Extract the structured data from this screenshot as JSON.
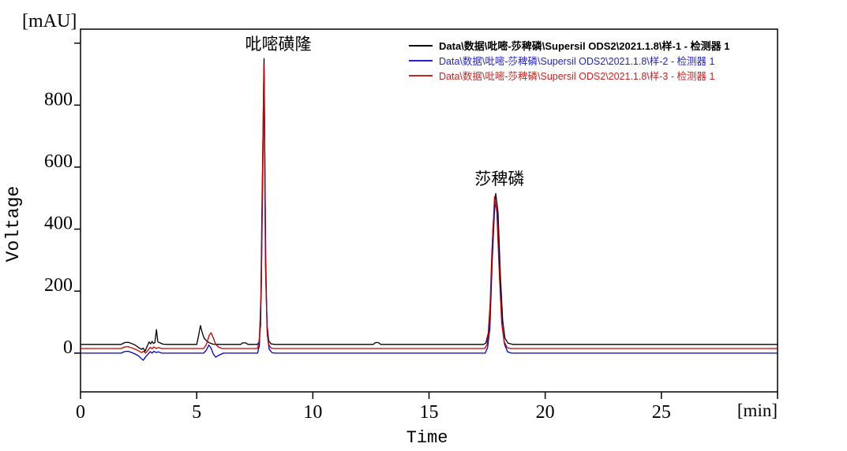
{
  "chart_data": {
    "type": "line",
    "title": "",
    "xlabel": "Time",
    "x_unit": "[min]",
    "ylabel": "Voltage",
    "y_unit": "[mAU]",
    "x_range": [
      0,
      30
    ],
    "y_range": [
      -125,
      1045
    ],
    "grid": "off",
    "legend_position": "top-right-inside",
    "axis_color": "#000000",
    "x_ticks": [
      {
        "t": 0,
        "label": "0"
      },
      {
        "t": 5,
        "label": "5"
      },
      {
        "t": 10,
        "label": "10"
      },
      {
        "t": 15,
        "label": "15"
      },
      {
        "t": 20,
        "label": "20"
      },
      {
        "t": 25,
        "label": "25"
      },
      {
        "t": 30,
        "label": ""
      }
    ],
    "y_ticks": [
      {
        "v": 0,
        "label": "0"
      },
      {
        "v": 200,
        "label": "200"
      },
      {
        "v": 400,
        "label": "400"
      },
      {
        "v": 600,
        "label": "600"
      },
      {
        "v": 800,
        "label": "800"
      },
      {
        "v": 1000,
        "label": ""
      }
    ],
    "peak_annotations": [
      {
        "label": "吡嘧磺隆",
        "t": 7.9,
        "value": 950,
        "dx": 18
      },
      {
        "label": "莎稗磷",
        "t": 17.9,
        "value": 515,
        "dx": 4
      }
    ],
    "series": [
      {
        "name": "样-1",
        "color": "#000000",
        "points": [
          [
            0,
            28
          ],
          [
            1.75,
            28
          ],
          [
            1.9,
            34
          ],
          [
            2.05,
            35
          ],
          [
            2.2,
            31
          ],
          [
            2.35,
            26
          ],
          [
            2.5,
            18
          ],
          [
            2.62,
            12
          ],
          [
            2.7,
            16
          ],
          [
            2.78,
            6
          ],
          [
            2.88,
            24
          ],
          [
            2.95,
            36
          ],
          [
            3.02,
            30
          ],
          [
            3.08,
            38
          ],
          [
            3.14,
            31
          ],
          [
            3.2,
            34
          ],
          [
            3.27,
            76
          ],
          [
            3.33,
            36
          ],
          [
            3.42,
            33
          ],
          [
            3.55,
            29
          ],
          [
            3.7,
            28
          ],
          [
            5.0,
            28
          ],
          [
            5.08,
            55
          ],
          [
            5.16,
            89
          ],
          [
            5.24,
            66
          ],
          [
            5.32,
            48
          ],
          [
            5.42,
            40
          ],
          [
            5.55,
            33
          ],
          [
            5.7,
            29
          ],
          [
            5.85,
            28
          ],
          [
            6.9,
            28
          ],
          [
            6.98,
            33
          ],
          [
            7.12,
            33
          ],
          [
            7.2,
            28
          ],
          [
            7.6,
            28
          ],
          [
            7.68,
            34
          ],
          [
            7.75,
            90
          ],
          [
            7.8,
            420
          ],
          [
            7.9,
            950
          ],
          [
            7.97,
            300
          ],
          [
            8.03,
            90
          ],
          [
            8.1,
            40
          ],
          [
            8.2,
            30
          ],
          [
            8.35,
            28
          ],
          [
            12.6,
            28
          ],
          [
            12.7,
            34
          ],
          [
            12.82,
            34
          ],
          [
            12.92,
            28
          ],
          [
            17.35,
            28
          ],
          [
            17.45,
            33
          ],
          [
            17.55,
            65
          ],
          [
            17.65,
            180
          ],
          [
            17.75,
            400
          ],
          [
            17.87,
            515
          ],
          [
            17.97,
            455
          ],
          [
            18.07,
            250
          ],
          [
            18.17,
            105
          ],
          [
            18.27,
            48
          ],
          [
            18.4,
            32
          ],
          [
            18.6,
            28
          ],
          [
            30,
            28
          ]
        ]
      },
      {
        "name": "样-2",
        "color": "#0000BE",
        "points": [
          [
            0,
            0
          ],
          [
            1.75,
            0
          ],
          [
            1.9,
            5
          ],
          [
            2.05,
            6
          ],
          [
            2.2,
            2
          ],
          [
            2.35,
            -3
          ],
          [
            2.5,
            -9
          ],
          [
            2.62,
            -18
          ],
          [
            2.7,
            -23
          ],
          [
            2.8,
            -12
          ],
          [
            2.9,
            -4
          ],
          [
            3.0,
            5
          ],
          [
            3.08,
            0
          ],
          [
            3.16,
            6
          ],
          [
            3.25,
            2
          ],
          [
            3.35,
            4
          ],
          [
            3.5,
            0
          ],
          [
            5.3,
            0
          ],
          [
            5.42,
            10
          ],
          [
            5.52,
            26
          ],
          [
            5.62,
            16
          ],
          [
            5.72,
            -4
          ],
          [
            5.82,
            -13
          ],
          [
            5.95,
            -7
          ],
          [
            6.15,
            0
          ],
          [
            7.62,
            0
          ],
          [
            7.7,
            25
          ],
          [
            7.78,
            200
          ],
          [
            7.9,
            915
          ],
          [
            7.97,
            260
          ],
          [
            8.04,
            60
          ],
          [
            8.12,
            12
          ],
          [
            8.25,
            1
          ],
          [
            8.4,
            0
          ],
          [
            17.42,
            0
          ],
          [
            17.52,
            18
          ],
          [
            17.62,
            80
          ],
          [
            17.72,
            300
          ],
          [
            17.84,
            495
          ],
          [
            17.94,
            445
          ],
          [
            18.05,
            235
          ],
          [
            18.15,
            85
          ],
          [
            18.25,
            28
          ],
          [
            18.38,
            4
          ],
          [
            18.55,
            0
          ],
          [
            30,
            0
          ]
        ]
      },
      {
        "name": "样-3",
        "color": "#C80000",
        "points": [
          [
            0,
            15
          ],
          [
            1.75,
            15
          ],
          [
            1.9,
            20
          ],
          [
            2.05,
            21
          ],
          [
            2.2,
            17
          ],
          [
            2.35,
            13
          ],
          [
            2.5,
            7
          ],
          [
            2.62,
            2
          ],
          [
            2.72,
            6
          ],
          [
            2.8,
            0
          ],
          [
            2.9,
            9
          ],
          [
            3.0,
            19
          ],
          [
            3.08,
            14
          ],
          [
            3.16,
            20
          ],
          [
            3.25,
            15
          ],
          [
            3.35,
            18
          ],
          [
            3.5,
            15
          ],
          [
            5.3,
            15
          ],
          [
            5.42,
            28
          ],
          [
            5.54,
            58
          ],
          [
            5.62,
            66
          ],
          [
            5.72,
            48
          ],
          [
            5.82,
            28
          ],
          [
            5.95,
            19
          ],
          [
            6.1,
            15
          ],
          [
            7.62,
            15
          ],
          [
            7.7,
            45
          ],
          [
            7.78,
            220
          ],
          [
            7.89,
            930
          ],
          [
            7.96,
            280
          ],
          [
            8.03,
            75
          ],
          [
            8.1,
            28
          ],
          [
            8.2,
            16
          ],
          [
            8.35,
            15
          ],
          [
            17.4,
            15
          ],
          [
            17.5,
            28
          ],
          [
            17.6,
            90
          ],
          [
            17.7,
            320
          ],
          [
            17.82,
            505
          ],
          [
            17.92,
            455
          ],
          [
            18.03,
            245
          ],
          [
            18.13,
            95
          ],
          [
            18.23,
            38
          ],
          [
            18.36,
            18
          ],
          [
            18.5,
            15
          ],
          [
            30,
            15
          ]
        ]
      }
    ]
  },
  "legend": {
    "entries": [
      {
        "label": "Data\\数据\\吡嘧-莎稗磷\\Supersil ODS2\\2021.1.8\\样-1 - 检测器 1",
        "color": "#000000",
        "bold": true
      },
      {
        "label": "Data\\数据\\吡嘧-莎稗磷\\Supersil ODS2\\2021.1.8\\样-2 - 检测器 1",
        "color": "#2222CC",
        "bold": false
      },
      {
        "label": "Data\\数据\\吡嘧-莎稗磷\\Supersil ODS2\\2021.1.8\\样-3 - 检测器 1",
        "color": "#CC2222",
        "bold": false
      }
    ]
  }
}
